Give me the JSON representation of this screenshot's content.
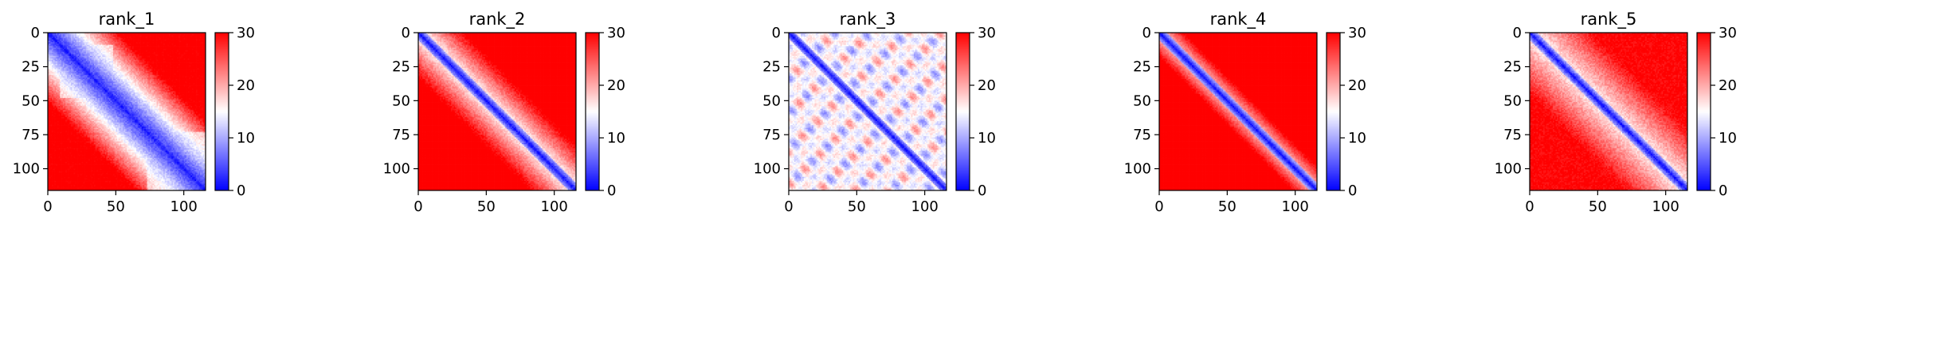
{
  "figure": {
    "colormap": "bwr",
    "colors": {
      "low": "#0000ff",
      "mid": "#ffffff",
      "high": "#ff0000"
    }
  },
  "chart_data": [
    {
      "type": "heatmap",
      "title": "rank_1",
      "xlabel": "",
      "ylabel": "",
      "size": 116,
      "xlim": [
        0,
        116
      ],
      "ylim": [
        116,
        0
      ],
      "x_ticks": [
        0,
        50,
        100
      ],
      "y_ticks": [
        0,
        25,
        50,
        75,
        100
      ],
      "colorbar": {
        "vmin": 0,
        "vmax": 30,
        "ticks": [
          0,
          10,
          20,
          30
        ]
      },
      "pattern": "diagonal band with broad low-value blocks near 10–45 and 75–116"
    },
    {
      "type": "heatmap",
      "title": "rank_2",
      "xlabel": "",
      "ylabel": "",
      "size": 116,
      "xlim": [
        0,
        116
      ],
      "ylim": [
        116,
        0
      ],
      "x_ticks": [
        0,
        50,
        100
      ],
      "y_ticks": [
        0,
        25,
        50,
        75,
        100
      ],
      "colorbar": {
        "vmin": 0,
        "vmax": 30,
        "ticks": [
          0,
          10,
          20,
          30
        ]
      },
      "pattern": "narrow low-value diagonal band, high values elsewhere"
    },
    {
      "type": "heatmap",
      "title": "rank_3",
      "xlabel": "",
      "ylabel": "",
      "size": 116,
      "xlim": [
        0,
        116
      ],
      "ylim": [
        116,
        0
      ],
      "x_ticks": [
        0,
        50,
        100
      ],
      "y_ticks": [
        0,
        25,
        50,
        75,
        100
      ],
      "colorbar": {
        "vmin": 0,
        "vmax": 30,
        "ticks": [
          0,
          10,
          20,
          30
        ]
      },
      "pattern": "diagonal band with periodic off-diagonal stripes, mostly mid values"
    },
    {
      "type": "heatmap",
      "title": "rank_4",
      "xlabel": "",
      "ylabel": "",
      "size": 116,
      "xlim": [
        0,
        116
      ],
      "ylim": [
        116,
        0
      ],
      "x_ticks": [
        0,
        50,
        100
      ],
      "y_ticks": [
        0,
        25,
        50,
        75,
        100
      ],
      "colorbar": {
        "vmin": 0,
        "vmax": 30,
        "ticks": [
          0,
          10,
          20,
          30
        ]
      },
      "pattern": "diagonal band, strongly high off-diagonal"
    },
    {
      "type": "heatmap",
      "title": "rank_5",
      "xlabel": "",
      "ylabel": "",
      "size": 116,
      "xlim": [
        0,
        116
      ],
      "ylim": [
        116,
        0
      ],
      "x_ticks": [
        0,
        50,
        100
      ],
      "y_ticks": [
        0,
        25,
        50,
        75,
        100
      ],
      "colorbar": {
        "vmin": 0,
        "vmax": 30,
        "ticks": [
          0,
          10,
          20,
          30
        ]
      },
      "pattern": "diagonal band, moderately high off-diagonal"
    }
  ]
}
